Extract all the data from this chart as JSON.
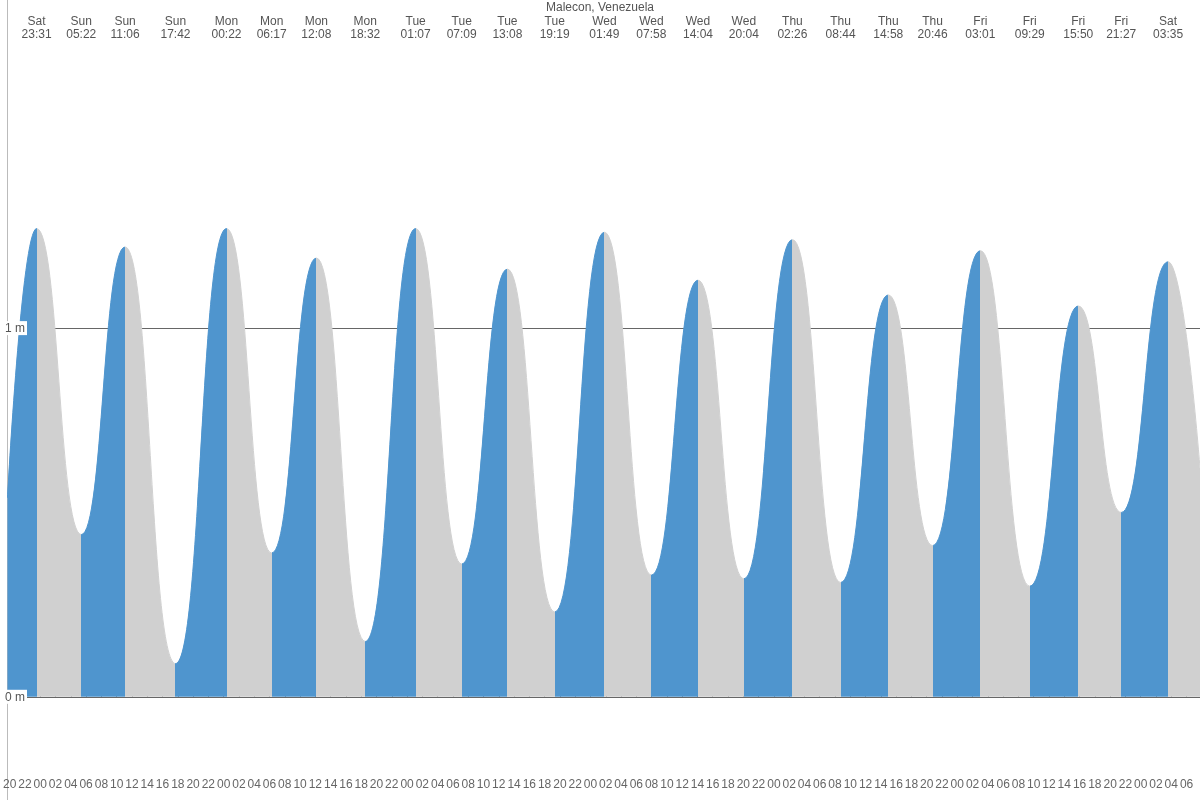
{
  "chart_data": {
    "type": "area",
    "title": "Malecon, Venezuela",
    "x": [
      19.71,
      23.52,
      29.37,
      35.1,
      41.7,
      48.37,
      54.28,
      60.13,
      66.53,
      73.12,
      79.15,
      85.13,
      91.32,
      97.82,
      103.97,
      110.07,
      116.07,
      122.43,
      128.73,
      134.97,
      140.77,
      147.02,
      153.48,
      159.83,
      165.45,
      171.58,
      175.76
    ],
    "values": [
      0.54,
      1.27,
      0.44,
      1.22,
      0.09,
      1.27,
      0.39,
      1.19,
      0.15,
      1.27,
      0.36,
      1.16,
      0.23,
      1.26,
      0.33,
      1.13,
      0.32,
      1.24,
      0.31,
      1.09,
      0.41,
      1.21,
      0.3,
      1.06,
      0.5,
      1.18,
      0.62
    ],
    "colors": [
      "#4f95ce",
      "#d0d0d0",
      "#4f95ce",
      "#d0d0d0",
      "#4f95ce",
      "#d0d0d0",
      "#4f95ce",
      "#d0d0d0",
      "#4f95ce",
      "#d0d0d0",
      "#4f95ce",
      "#d0d0d0",
      "#4f95ce",
      "#d0d0d0",
      "#4f95ce",
      "#d0d0d0",
      "#4f95ce",
      "#d0d0d0",
      "#4f95ce",
      "#d0d0d0",
      "#4f95ce",
      "#d0d0d0",
      "#4f95ce",
      "#d0d0d0",
      "#4f95ce",
      "#d0d0d0",
      "#d0d0d0"
    ],
    "xlim": [
      19.71,
      175.76
    ],
    "xticks": [
      {
        "value": 20,
        "label": "20"
      },
      {
        "value": 22,
        "label": "22"
      },
      {
        "value": 24,
        "label": "00"
      },
      {
        "value": 26,
        "label": "02"
      },
      {
        "value": 28,
        "label": "04"
      },
      {
        "value": 30,
        "label": "06"
      },
      {
        "value": 32,
        "label": "08"
      },
      {
        "value": 34,
        "label": "10"
      },
      {
        "value": 36,
        "label": "12"
      },
      {
        "value": 38,
        "label": "14"
      },
      {
        "value": 40,
        "label": "16"
      },
      {
        "value": 42,
        "label": "18"
      },
      {
        "value": 44,
        "label": "20"
      },
      {
        "value": 46,
        "label": "22"
      },
      {
        "value": 48,
        "label": "00"
      },
      {
        "value": 50,
        "label": "02"
      },
      {
        "value": 52,
        "label": "04"
      },
      {
        "value": 54,
        "label": "06"
      },
      {
        "value": 56,
        "label": "08"
      },
      {
        "value": 58,
        "label": "10"
      },
      {
        "value": 60,
        "label": "12"
      },
      {
        "value": 62,
        "label": "14"
      },
      {
        "value": 64,
        "label": "16"
      },
      {
        "value": 66,
        "label": "18"
      },
      {
        "value": 68,
        "label": "20"
      },
      {
        "value": 70,
        "label": "22"
      },
      {
        "value": 72,
        "label": "00"
      },
      {
        "value": 74,
        "label": "02"
      },
      {
        "value": 76,
        "label": "04"
      },
      {
        "value": 78,
        "label": "06"
      },
      {
        "value": 80,
        "label": "08"
      },
      {
        "value": 82,
        "label": "10"
      },
      {
        "value": 84,
        "label": "12"
      },
      {
        "value": 86,
        "label": "14"
      },
      {
        "value": 88,
        "label": "16"
      },
      {
        "value": 90,
        "label": "18"
      },
      {
        "value": 92,
        "label": "20"
      },
      {
        "value": 94,
        "label": "22"
      },
      {
        "value": 96,
        "label": "00"
      },
      {
        "value": 98,
        "label": "02"
      },
      {
        "value": 100,
        "label": "04"
      },
      {
        "value": 102,
        "label": "06"
      },
      {
        "value": 104,
        "label": "08"
      },
      {
        "value": 106,
        "label": "10"
      },
      {
        "value": 108,
        "label": "12"
      },
      {
        "value": 110,
        "label": "14"
      },
      {
        "value": 112,
        "label": "16"
      },
      {
        "value": 114,
        "label": "18"
      },
      {
        "value": 116,
        "label": "20"
      },
      {
        "value": 118,
        "label": "22"
      },
      {
        "value": 120,
        "label": "00"
      },
      {
        "value": 122,
        "label": "02"
      },
      {
        "value": 124,
        "label": "04"
      },
      {
        "value": 126,
        "label": "06"
      },
      {
        "value": 128,
        "label": "08"
      },
      {
        "value": 130,
        "label": "10"
      },
      {
        "value": 132,
        "label": "12"
      },
      {
        "value": 134,
        "label": "14"
      },
      {
        "value": 136,
        "label": "16"
      },
      {
        "value": 138,
        "label": "18"
      },
      {
        "value": 140,
        "label": "20"
      },
      {
        "value": 142,
        "label": "22"
      },
      {
        "value": 144,
        "label": "00"
      },
      {
        "value": 146,
        "label": "02"
      },
      {
        "value": 148,
        "label": "04"
      },
      {
        "value": 150,
        "label": "06"
      },
      {
        "value": 152,
        "label": "08"
      },
      {
        "value": 154,
        "label": "10"
      },
      {
        "value": 156,
        "label": "12"
      },
      {
        "value": 158,
        "label": "14"
      },
      {
        "value": 160,
        "label": "16"
      },
      {
        "value": 162,
        "label": "18"
      },
      {
        "value": 164,
        "label": "20"
      },
      {
        "value": 166,
        "label": "22"
      },
      {
        "value": 168,
        "label": "00"
      },
      {
        "value": 170,
        "label": "02"
      },
      {
        "value": 172,
        "label": "04"
      },
      {
        "value": 174,
        "label": "06"
      }
    ],
    "ylim": [
      -0.28,
      1.89
    ],
    "yticks": [
      {
        "value": 0,
        "label": "0 m"
      },
      {
        "value": 1,
        "label": "1 m"
      }
    ],
    "grid": "y",
    "annotations": [
      "Sat\n23:31",
      "Sun\n05:22",
      "Sun\n11:06",
      "Sun\n17:42",
      "Mon\n00:22",
      "Mon\n06:17",
      "Mon\n12:08",
      "Mon\n18:32",
      "Tue\n01:07",
      "Tue\n07:09",
      "Tue\n13:08",
      "Tue\n19:19",
      "Wed\n01:49",
      "Wed\n07:58",
      "Wed\n14:04",
      "Wed\n20:04",
      "Thu\n02:26",
      "Thu\n08:44",
      "Thu\n14:58",
      "Thu\n20:46",
      "Fri\n03:01",
      "Fri\n09:29",
      "Fri\n15:50",
      "Fri\n21:27",
      "Sat\n03:35"
    ]
  }
}
